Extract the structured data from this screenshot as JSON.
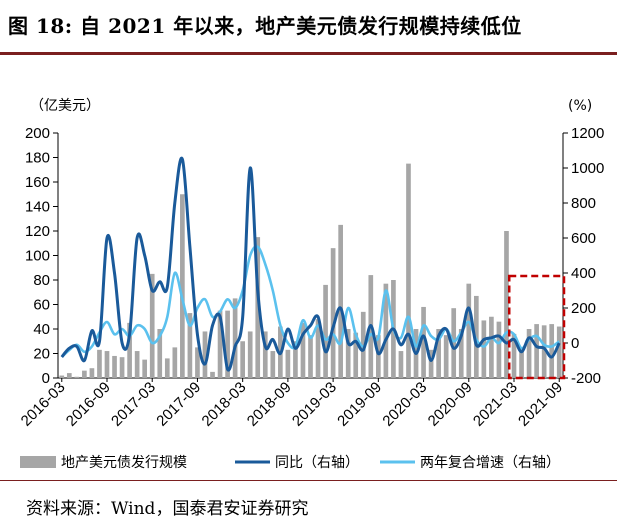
{
  "title": "图 18: 自 2021 年以来，地产美元债发行规模持续低位",
  "source": "资料来源：Wind，国泰君安证券研究",
  "colors": {
    "bar": "#a6a6a6",
    "yoy": "#1a5a9a",
    "cagr": "#5bc1ee",
    "highlight": "#c00000"
  },
  "chart_data": {
    "type": "bar+line",
    "left_unit": "（亿美元）",
    "right_unit": "(%)",
    "ylim_left": [
      0,
      200
    ],
    "yticks_left": [
      0,
      20,
      40,
      60,
      80,
      100,
      120,
      140,
      160,
      180,
      200
    ],
    "ylim_right": [
      -200,
      1200
    ],
    "yticks_right": [
      -200,
      0,
      200,
      400,
      600,
      800,
      1000,
      1200
    ],
    "xtick_labels": [
      "2016-03",
      "2016-09",
      "2017-03",
      "2017-09",
      "2018-03",
      "2018-09",
      "2019-03",
      "2019-09",
      "2020-03",
      "2020-09",
      "2021-03",
      "2021-09"
    ],
    "months": [
      "2016-03",
      "2016-04",
      "2016-05",
      "2016-06",
      "2016-07",
      "2016-08",
      "2016-09",
      "2016-10",
      "2016-11",
      "2016-12",
      "2017-01",
      "2017-02",
      "2017-03",
      "2017-04",
      "2017-05",
      "2017-06",
      "2017-07",
      "2017-08",
      "2017-09",
      "2017-10",
      "2017-11",
      "2017-12",
      "2018-01",
      "2018-02",
      "2018-03",
      "2018-04",
      "2018-05",
      "2018-06",
      "2018-07",
      "2018-08",
      "2018-09",
      "2018-10",
      "2018-11",
      "2018-12",
      "2019-01",
      "2019-02",
      "2019-03",
      "2019-04",
      "2019-05",
      "2019-06",
      "2019-07",
      "2019-08",
      "2019-09",
      "2019-10",
      "2019-11",
      "2019-12",
      "2020-01",
      "2020-02",
      "2020-03",
      "2020-04",
      "2020-05",
      "2020-06",
      "2020-07",
      "2020-08",
      "2020-09",
      "2020-10",
      "2020-11",
      "2020-12",
      "2021-01",
      "2021-02",
      "2021-03",
      "2021-04",
      "2021-05",
      "2021-06",
      "2021-07",
      "2021-08",
      "2021-09"
    ],
    "series": [
      {
        "name": "地产美元债发行规模",
        "axis": "left",
        "type": "bar",
        "values": [
          2,
          4,
          1,
          6,
          8,
          23,
          22,
          18,
          17,
          45,
          22,
          15,
          85,
          40,
          16,
          25,
          150,
          53,
          25,
          38,
          5,
          55,
          55,
          65,
          30,
          38,
          115,
          38,
          22,
          42,
          23,
          30,
          45,
          35,
          48,
          76,
          106,
          125,
          40,
          37,
          54,
          84,
          35,
          77,
          80,
          22,
          175,
          40,
          58,
          23,
          40,
          35,
          57,
          40,
          77,
          67,
          47,
          50,
          46,
          120,
          36,
          24,
          40,
          44,
          43,
          44,
          42
        ]
      },
      {
        "name": "同比（右轴）",
        "axis": "right",
        "type": "line",
        "values": [
          -80,
          -30,
          -20,
          -100,
          70,
          10,
          600,
          400,
          0,
          50,
          600,
          500,
          300,
          350,
          320,
          800,
          1050,
          550,
          50,
          -120,
          100,
          150,
          -150,
          -20,
          150,
          1000,
          300,
          -20,
          20,
          -60,
          80,
          -30,
          50,
          100,
          150,
          -50,
          90,
          200,
          0,
          10,
          -40,
          100,
          -60,
          20,
          80,
          -10,
          50,
          -60,
          40,
          -100,
          40,
          80,
          -30,
          40,
          200,
          -10,
          20,
          30,
          40,
          0,
          20,
          -50,
          30,
          -20,
          -30,
          -80,
          0
        ]
      },
      {
        "name": "两年复合增速（右轴）",
        "axis": "right",
        "type": "line",
        "values": [
          -80,
          -40,
          -10,
          -50,
          -20,
          60,
          120,
          50,
          80,
          40,
          100,
          80,
          0,
          40,
          150,
          400,
          250,
          100,
          200,
          250,
          150,
          180,
          250,
          200,
          300,
          500,
          550,
          450,
          300,
          100,
          0,
          -20,
          130,
          30,
          100,
          20,
          50,
          0,
          200,
          50,
          -20,
          50,
          30,
          300,
          80,
          30,
          150,
          -20,
          100,
          40,
          20,
          80,
          10,
          60,
          120,
          20,
          -20,
          30,
          0,
          60,
          50,
          -30,
          20,
          40,
          -10,
          -20,
          10
        ]
      }
    ],
    "highlight_range": [
      "2021-03",
      "2021-09"
    ],
    "legend": [
      "地产美元债发行规模",
      "同比（右轴）",
      "两年复合增速（右轴）"
    ],
    "legend_position": "bottom"
  }
}
